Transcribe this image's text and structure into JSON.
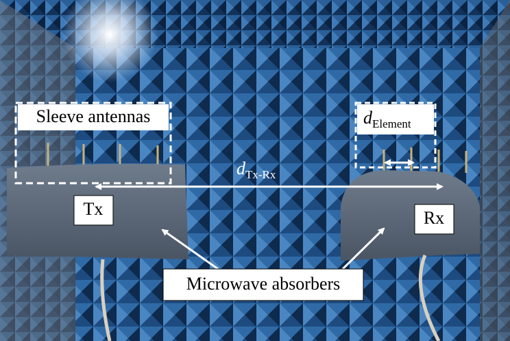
{
  "labels": {
    "sleeve_antennas": "Sleeve antennas",
    "d_element": {
      "symbol": "d",
      "subscript": "Element"
    },
    "d_tx_rx": {
      "symbol": "d",
      "subscript": "Tx-Rx"
    },
    "tx": "Tx",
    "rx": "Rx",
    "absorbers": "Microwave absorbers"
  }
}
